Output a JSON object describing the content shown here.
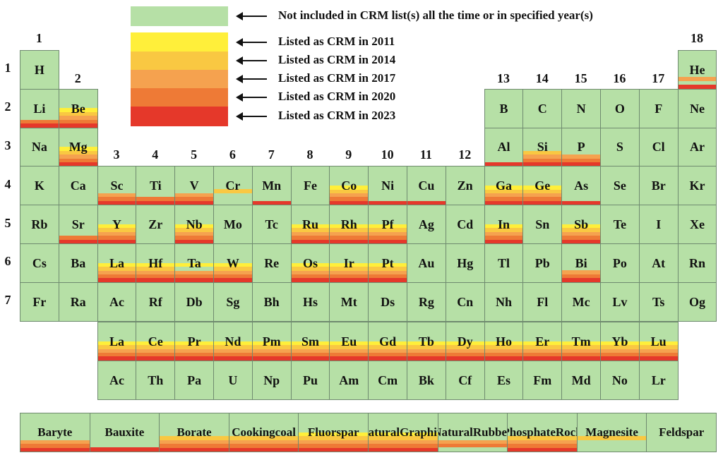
{
  "colors": {
    "green": "#b6e0a6",
    "y2011": "#ffef3a",
    "y2014": "#f9c842",
    "y2017": "#f5a24f",
    "y2020": "#ee7a36",
    "y2023": "#e5382a"
  },
  "legend": [
    {
      "key": "green",
      "text": "Not included in CRM list(s) all the time or in specified year(s)"
    },
    {
      "key": "y2011",
      "text": "Listed as CRM in 2011"
    },
    {
      "key": "y2014",
      "text": "Listed as CRM in 2014"
    },
    {
      "key": "y2017",
      "text": "Listed as CRM in 2017"
    },
    {
      "key": "y2020",
      "text": "Listed as CRM in 2020"
    },
    {
      "key": "y2023",
      "text": "Listed as CRM in 2023"
    }
  ],
  "group_labels": [
    "1",
    "2",
    "3",
    "4",
    "5",
    "6",
    "7",
    "8",
    "9",
    "10",
    "11",
    "12",
    "13",
    "14",
    "15",
    "16",
    "17",
    "18"
  ],
  "period_labels": [
    "1",
    "2",
    "3",
    "4",
    "5",
    "6",
    "7"
  ],
  "elements": [
    {
      "s": "H",
      "g": 1,
      "p": 1,
      "c": []
    },
    {
      "s": "He",
      "g": 18,
      "p": 1,
      "c": [
        2017,
        2023
      ]
    },
    {
      "s": "Li",
      "g": 1,
      "p": 2,
      "c": [
        2020,
        2023
      ]
    },
    {
      "s": "Be",
      "g": 2,
      "p": 2,
      "c": [
        2011,
        2014,
        2017,
        2020,
        2023
      ]
    },
    {
      "s": "B",
      "g": 13,
      "p": 2,
      "c": []
    },
    {
      "s": "C",
      "g": 14,
      "p": 2,
      "c": []
    },
    {
      "s": "N",
      "g": 15,
      "p": 2,
      "c": []
    },
    {
      "s": "O",
      "g": 16,
      "p": 2,
      "c": []
    },
    {
      "s": "F",
      "g": 17,
      "p": 2,
      "c": []
    },
    {
      "s": "Ne",
      "g": 18,
      "p": 2,
      "c": []
    },
    {
      "s": "Na",
      "g": 1,
      "p": 3,
      "c": []
    },
    {
      "s": "Mg",
      "g": 2,
      "p": 3,
      "c": [
        2011,
        2014,
        2017,
        2020,
        2023
      ]
    },
    {
      "s": "Al",
      "g": 13,
      "p": 3,
      "c": [
        2023
      ]
    },
    {
      "s": "Si",
      "g": 14,
      "p": 3,
      "c": [
        2014,
        2017,
        2020,
        2023
      ]
    },
    {
      "s": "P",
      "g": 15,
      "p": 3,
      "c": [
        2017,
        2020,
        2023
      ]
    },
    {
      "s": "S",
      "g": 16,
      "p": 3,
      "c": []
    },
    {
      "s": "Cl",
      "g": 17,
      "p": 3,
      "c": []
    },
    {
      "s": "Ar",
      "g": 18,
      "p": 3,
      "c": []
    },
    {
      "s": "K",
      "g": 1,
      "p": 4,
      "c": []
    },
    {
      "s": "Ca",
      "g": 2,
      "p": 4,
      "c": []
    },
    {
      "s": "Sc",
      "g": 3,
      "p": 4,
      "c": [
        2017,
        2020,
        2023
      ]
    },
    {
      "s": "Ti",
      "g": 4,
      "p": 4,
      "c": [
        2020,
        2023
      ]
    },
    {
      "s": "V",
      "g": 5,
      "p": 4,
      "c": [
        2017,
        2020,
        2023
      ]
    },
    {
      "s": "Cr",
      "g": 6,
      "p": 4,
      "c": [
        2014
      ]
    },
    {
      "s": "Mn",
      "g": 7,
      "p": 4,
      "c": [
        2023
      ]
    },
    {
      "s": "Fe",
      "g": 8,
      "p": 4,
      "c": []
    },
    {
      "s": "Co",
      "g": 9,
      "p": 4,
      "c": [
        2011,
        2014,
        2017,
        2020,
        2023
      ]
    },
    {
      "s": "Ni",
      "g": 10,
      "p": 4,
      "c": [
        2023
      ]
    },
    {
      "s": "Cu",
      "g": 11,
      "p": 4,
      "c": [
        2023
      ]
    },
    {
      "s": "Zn",
      "g": 12,
      "p": 4,
      "c": []
    },
    {
      "s": "Ga",
      "g": 13,
      "p": 4,
      "c": [
        2011,
        2014,
        2017,
        2020,
        2023
      ]
    },
    {
      "s": "Ge",
      "g": 14,
      "p": 4,
      "c": [
        2011,
        2014,
        2017,
        2020,
        2023
      ]
    },
    {
      "s": "As",
      "g": 15,
      "p": 4,
      "c": [
        2023
      ]
    },
    {
      "s": "Se",
      "g": 16,
      "p": 4,
      "c": []
    },
    {
      "s": "Br",
      "g": 17,
      "p": 4,
      "c": []
    },
    {
      "s": "Kr",
      "g": 18,
      "p": 4,
      "c": []
    },
    {
      "s": "Rb",
      "g": 1,
      "p": 5,
      "c": []
    },
    {
      "s": "Sr",
      "g": 2,
      "p": 5,
      "c": [
        2020,
        2023
      ]
    },
    {
      "s": "Y",
      "g": 3,
      "p": 5,
      "c": [
        2011,
        2014,
        2017,
        2020,
        2023
      ]
    },
    {
      "s": "Zr",
      "g": 4,
      "p": 5,
      "c": []
    },
    {
      "s": "Nb",
      "g": 5,
      "p": 5,
      "c": [
        2011,
        2014,
        2017,
        2020,
        2023
      ]
    },
    {
      "s": "Mo",
      "g": 6,
      "p": 5,
      "c": []
    },
    {
      "s": "Tc",
      "g": 7,
      "p": 5,
      "c": []
    },
    {
      "s": "Ru",
      "g": 8,
      "p": 5,
      "c": [
        2011,
        2014,
        2017,
        2020,
        2023
      ]
    },
    {
      "s": "Rh",
      "g": 9,
      "p": 5,
      "c": [
        2011,
        2014,
        2017,
        2020,
        2023
      ]
    },
    {
      "s": "Pf",
      "g": 10,
      "p": 5,
      "c": [
        2011,
        2014,
        2017,
        2020,
        2023
      ]
    },
    {
      "s": "Ag",
      "g": 11,
      "p": 5,
      "c": []
    },
    {
      "s": "Cd",
      "g": 12,
      "p": 5,
      "c": []
    },
    {
      "s": "In",
      "g": 13,
      "p": 5,
      "c": [
        2011,
        2014,
        2017,
        2020,
        2023
      ]
    },
    {
      "s": "Sn",
      "g": 14,
      "p": 5,
      "c": []
    },
    {
      "s": "Sb",
      "g": 15,
      "p": 5,
      "c": [
        2011,
        2014,
        2017,
        2020,
        2023
      ]
    },
    {
      "s": "Te",
      "g": 16,
      "p": 5,
      "c": []
    },
    {
      "s": "I",
      "g": 17,
      "p": 5,
      "c": []
    },
    {
      "s": "Xe",
      "g": 18,
      "p": 5,
      "c": []
    },
    {
      "s": "Cs",
      "g": 1,
      "p": 6,
      "c": []
    },
    {
      "s": "Ba",
      "g": 2,
      "p": 6,
      "c": []
    },
    {
      "s": "La",
      "g": 3,
      "p": 6,
      "c": [
        2011,
        2014,
        2017,
        2020,
        2023
      ]
    },
    {
      "s": "Hf",
      "g": 4,
      "p": 6,
      "c": [
        2011,
        2014,
        2017,
        2020,
        2023
      ]
    },
    {
      "s": "Ta",
      "g": 5,
      "p": 6,
      "c": [
        2011,
        2014,
        2017,
        2020,
        2023
      ],
      "gap": 2014
    },
    {
      "s": "W",
      "g": 6,
      "p": 6,
      "c": [
        2011,
        2014,
        2017,
        2020,
        2023
      ]
    },
    {
      "s": "Re",
      "g": 7,
      "p": 6,
      "c": []
    },
    {
      "s": "Os",
      "g": 8,
      "p": 6,
      "c": [
        2011,
        2014,
        2017,
        2020,
        2023
      ]
    },
    {
      "s": "Ir",
      "g": 9,
      "p": 6,
      "c": [
        2011,
        2014,
        2017,
        2020,
        2023
      ]
    },
    {
      "s": "Pt",
      "g": 10,
      "p": 6,
      "c": [
        2011,
        2014,
        2017,
        2020,
        2023
      ]
    },
    {
      "s": "Au",
      "g": 11,
      "p": 6,
      "c": []
    },
    {
      "s": "Hg",
      "g": 12,
      "p": 6,
      "c": []
    },
    {
      "s": "Tl",
      "g": 13,
      "p": 6,
      "c": []
    },
    {
      "s": "Pb",
      "g": 14,
      "p": 6,
      "c": []
    },
    {
      "s": "Bi",
      "g": 15,
      "p": 6,
      "c": [
        2017,
        2020,
        2023
      ]
    },
    {
      "s": "Po",
      "g": 16,
      "p": 6,
      "c": []
    },
    {
      "s": "At",
      "g": 17,
      "p": 6,
      "c": []
    },
    {
      "s": "Rn",
      "g": 18,
      "p": 6,
      "c": []
    },
    {
      "s": "Fr",
      "g": 1,
      "p": 7,
      "c": []
    },
    {
      "s": "Ra",
      "g": 2,
      "p": 7,
      "c": []
    },
    {
      "s": "Ac",
      "g": 3,
      "p": 7,
      "c": []
    },
    {
      "s": "Rf",
      "g": 4,
      "p": 7,
      "c": []
    },
    {
      "s": "Db",
      "g": 5,
      "p": 7,
      "c": []
    },
    {
      "s": "Sg",
      "g": 6,
      "p": 7,
      "c": []
    },
    {
      "s": "Bh",
      "g": 7,
      "p": 7,
      "c": []
    },
    {
      "s": "Hs",
      "g": 8,
      "p": 7,
      "c": []
    },
    {
      "s": "Mt",
      "g": 9,
      "p": 7,
      "c": []
    },
    {
      "s": "Ds",
      "g": 10,
      "p": 7,
      "c": []
    },
    {
      "s": "Rg",
      "g": 11,
      "p": 7,
      "c": []
    },
    {
      "s": "Cn",
      "g": 12,
      "p": 7,
      "c": []
    },
    {
      "s": "Nh",
      "g": 13,
      "p": 7,
      "c": []
    },
    {
      "s": "Fl",
      "g": 14,
      "p": 7,
      "c": []
    },
    {
      "s": "Mc",
      "g": 15,
      "p": 7,
      "c": []
    },
    {
      "s": "Lv",
      "g": 16,
      "p": 7,
      "c": []
    },
    {
      "s": "Ts",
      "g": 17,
      "p": 7,
      "c": []
    },
    {
      "s": "Og",
      "g": 18,
      "p": 7,
      "c": []
    }
  ],
  "lanthanides": [
    {
      "s": "La",
      "c": [
        2011,
        2014,
        2017,
        2020,
        2023
      ]
    },
    {
      "s": "Ce",
      "c": [
        2011,
        2014,
        2017,
        2020,
        2023
      ]
    },
    {
      "s": "Pr",
      "c": [
        2011,
        2014,
        2017,
        2020,
        2023
      ]
    },
    {
      "s": "Nd",
      "c": [
        2011,
        2014,
        2017,
        2020,
        2023
      ]
    },
    {
      "s": "Pm",
      "c": [
        2011,
        2014,
        2017,
        2020,
        2023
      ]
    },
    {
      "s": "Sm",
      "c": [
        2011,
        2014,
        2017,
        2020,
        2023
      ]
    },
    {
      "s": "Eu",
      "c": [
        2011,
        2014,
        2017,
        2020,
        2023
      ]
    },
    {
      "s": "Gd",
      "c": [
        2011,
        2014,
        2017,
        2020,
        2023
      ]
    },
    {
      "s": "Tb",
      "c": [
        2011,
        2014,
        2017,
        2020,
        2023
      ]
    },
    {
      "s": "Dy",
      "c": [
        2011,
        2014,
        2017,
        2020,
        2023
      ]
    },
    {
      "s": "Ho",
      "c": [
        2011,
        2014,
        2017,
        2020,
        2023
      ]
    },
    {
      "s": "Er",
      "c": [
        2011,
        2014,
        2017,
        2020,
        2023
      ]
    },
    {
      "s": "Tm",
      "c": [
        2011,
        2014,
        2017,
        2020,
        2023
      ]
    },
    {
      "s": "Yb",
      "c": [
        2011,
        2014,
        2017,
        2020,
        2023
      ]
    },
    {
      "s": "Lu",
      "c": [
        2011,
        2014,
        2017,
        2020,
        2023
      ]
    }
  ],
  "actinides": [
    {
      "s": "Ac",
      "c": []
    },
    {
      "s": "Th",
      "c": []
    },
    {
      "s": "Pa",
      "c": []
    },
    {
      "s": "U",
      "c": []
    },
    {
      "s": "Np",
      "c": []
    },
    {
      "s": "Pu",
      "c": []
    },
    {
      "s": "Am",
      "c": []
    },
    {
      "s": "Cm",
      "c": []
    },
    {
      "s": "Bk",
      "c": []
    },
    {
      "s": "Cf",
      "c": []
    },
    {
      "s": "Es",
      "c": []
    },
    {
      "s": "Fm",
      "c": []
    },
    {
      "s": "Md",
      "c": []
    },
    {
      "s": "No",
      "c": []
    },
    {
      "s": "Lr",
      "c": []
    }
  ],
  "minerals": [
    {
      "name": "Baryte",
      "c": [
        2017,
        2020,
        2023
      ]
    },
    {
      "name": "Bauxite",
      "c": [
        2023
      ]
    },
    {
      "name": "Borate",
      "c": [
        2014,
        2017,
        2020,
        2023
      ]
    },
    {
      "name": "Cooking coal",
      "lines": [
        "Cooking",
        "coal"
      ],
      "c": [
        2014,
        2017,
        2020,
        2023
      ]
    },
    {
      "name": "Fluorspar",
      "c": [
        2011,
        2014,
        2017,
        2020,
        2023
      ]
    },
    {
      "name": "Natural Graphite",
      "lines": [
        "Natural",
        "Graphite"
      ],
      "c": [
        2011,
        2014,
        2017,
        2020,
        2023
      ]
    },
    {
      "name": "Natural Rubber",
      "lines": [
        "Natural",
        "Rubber"
      ],
      "c": [
        2017,
        2020
      ],
      "tail": true
    },
    {
      "name": "Phosphate Rock",
      "lines": [
        "Phosphate",
        "Rock"
      ],
      "c": [
        2014,
        2017,
        2020,
        2023
      ]
    },
    {
      "name": "Magnesite",
      "c": [
        2014
      ]
    },
    {
      "name": "Feldspar",
      "c": []
    }
  ]
}
